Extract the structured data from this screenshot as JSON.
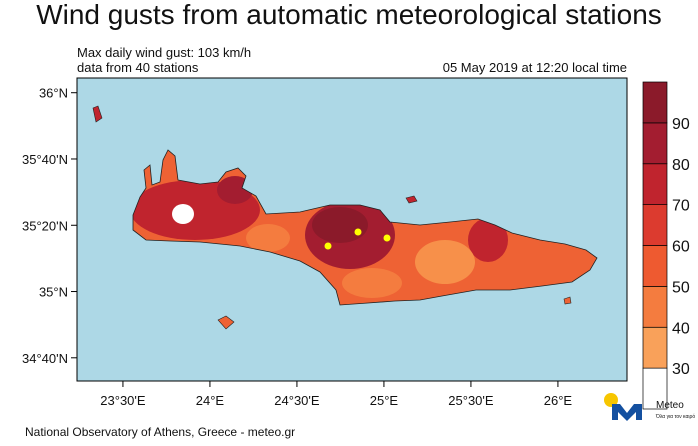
{
  "header": {
    "title": "Wind gusts from automatic meteorological stations",
    "info_lines": [
      "Max daily wind gust: 103 km/h",
      "data from 40 stations"
    ],
    "timestamp": "05 May 2019 at 12:20 local time"
  },
  "map": {
    "lonlim": [
      23.236,
      26.397
    ],
    "latlim": [
      34.55,
      36.074
    ],
    "lat_ticks": [
      {
        "value": 36,
        "label": "36°N"
      },
      {
        "value": 35.6667,
        "label": "35°40'N"
      },
      {
        "value": 35.3333,
        "label": "35°20'N"
      },
      {
        "value": 35,
        "label": "35°N"
      },
      {
        "value": 34.6667,
        "label": "34°40'N"
      }
    ],
    "lon_ticks": [
      {
        "value": 23.5,
        "label": "23°30'E"
      },
      {
        "value": 24,
        "label": "24°E"
      },
      {
        "value": 24.5,
        "label": "24°30'E"
      },
      {
        "value": 25,
        "label": "25°E"
      },
      {
        "value": 25.5,
        "label": "25°30'E"
      },
      {
        "value": 26,
        "label": "26°E"
      }
    ]
  },
  "colorbar": {
    "levels": [
      30,
      40,
      50,
      60,
      70,
      80,
      90
    ],
    "colors": [
      "#ffffff",
      "#f9a15a",
      "#f47c3f",
      "#ee5a30",
      "#dc3b2f",
      "#c0242e",
      "#a31d30",
      "#8b1a2a"
    ]
  },
  "footer": "National Observatory of Athens, Greece - meteo.gr",
  "logo": {
    "name": "Meteo",
    "tagline": "Όλα για τον καιρό"
  }
}
